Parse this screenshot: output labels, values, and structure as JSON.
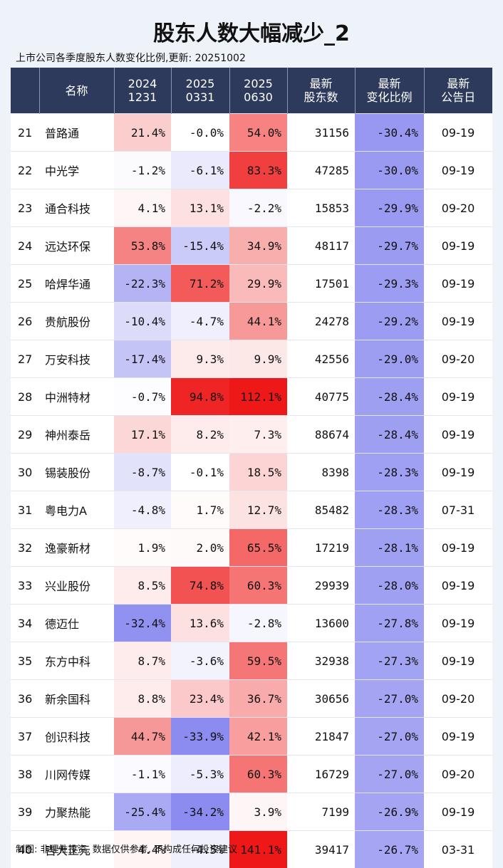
{
  "title": "股东人数大幅减少_2",
  "subtitle": "上市公司各季度股东人数变化比例,更新: 20251002",
  "table": {
    "header": [
      [
        "名称"
      ],
      [
        "2024",
        "1231"
      ],
      [
        "2025",
        "0331"
      ],
      [
        "2025",
        "0630"
      ],
      [
        "最新",
        "股东数"
      ],
      [
        "最新",
        "变化比例"
      ],
      [
        "最新",
        "公告日"
      ]
    ],
    "rows": [
      [
        "21",
        "普路通",
        "21.4%",
        "-0.0%",
        "54.0%",
        "31156",
        "-30.4%",
        "09-19"
      ],
      [
        "22",
        "中光学",
        "-1.2%",
        "-6.1%",
        "83.3%",
        "47285",
        "-30.0%",
        "09-19"
      ],
      [
        "23",
        "通合科技",
        "4.1%",
        "13.1%",
        "-2.2%",
        "15853",
        "-29.9%",
        "09-20"
      ],
      [
        "24",
        "远达环保",
        "53.8%",
        "-15.4%",
        "34.9%",
        "48117",
        "-29.7%",
        "09-19"
      ],
      [
        "25",
        "哈焊华通",
        "-22.3%",
        "71.2%",
        "29.9%",
        "17501",
        "-29.3%",
        "09-19"
      ],
      [
        "26",
        "贵航股份",
        "-10.4%",
        "-4.7%",
        "44.1%",
        "24278",
        "-29.2%",
        "09-19"
      ],
      [
        "27",
        "万安科技",
        "-17.4%",
        "9.3%",
        "9.9%",
        "42556",
        "-29.0%",
        "09-20"
      ],
      [
        "28",
        "中洲特材",
        "-0.7%",
        "94.8%",
        "112.1%",
        "40775",
        "-28.4%",
        "09-19"
      ],
      [
        "29",
        "神州泰岳",
        "17.1%",
        "8.2%",
        "7.3%",
        "88674",
        "-28.4%",
        "09-19"
      ],
      [
        "30",
        "锡装股份",
        "-8.7%",
        "-0.1%",
        "18.5%",
        "8398",
        "-28.3%",
        "09-19"
      ],
      [
        "31",
        "粤电力A",
        "-4.8%",
        "1.7%",
        "12.7%",
        "85482",
        "-28.3%",
        "07-31"
      ],
      [
        "32",
        "逸豪新材",
        "1.9%",
        "2.0%",
        "65.5%",
        "17219",
        "-28.1%",
        "09-19"
      ],
      [
        "33",
        "兴业股份",
        "8.5%",
        "74.8%",
        "60.3%",
        "29939",
        "-28.0%",
        "09-19"
      ],
      [
        "34",
        "德迈仕",
        "-32.4%",
        "13.6%",
        "-2.8%",
        "13600",
        "-27.8%",
        "09-19"
      ],
      [
        "35",
        "东方中科",
        "8.7%",
        "-3.6%",
        "59.5%",
        "32938",
        "-27.3%",
        "09-19"
      ],
      [
        "36",
        "新余国科",
        "8.8%",
        "23.4%",
        "36.7%",
        "30656",
        "-27.0%",
        "09-20"
      ],
      [
        "37",
        "创识科技",
        "44.7%",
        "-33.9%",
        "42.1%",
        "21847",
        "-27.0%",
        "09-19"
      ],
      [
        "38",
        "川网传媒",
        "-1.1%",
        "-5.3%",
        "60.3%",
        "16729",
        "-27.0%",
        "09-20"
      ],
      [
        "39",
        "力聚热能",
        "-25.4%",
        "-34.2%",
        "3.9%",
        "7199",
        "-26.9%",
        "09-19"
      ],
      [
        "40",
        "吉大正元",
        "4.4%",
        "-4.5%",
        "141.1%",
        "39417",
        "-26.7%",
        "03-31"
      ]
    ]
  },
  "footer": "制图: 非理性投资, 数据仅供参考, 不构成任何投资建议"
}
